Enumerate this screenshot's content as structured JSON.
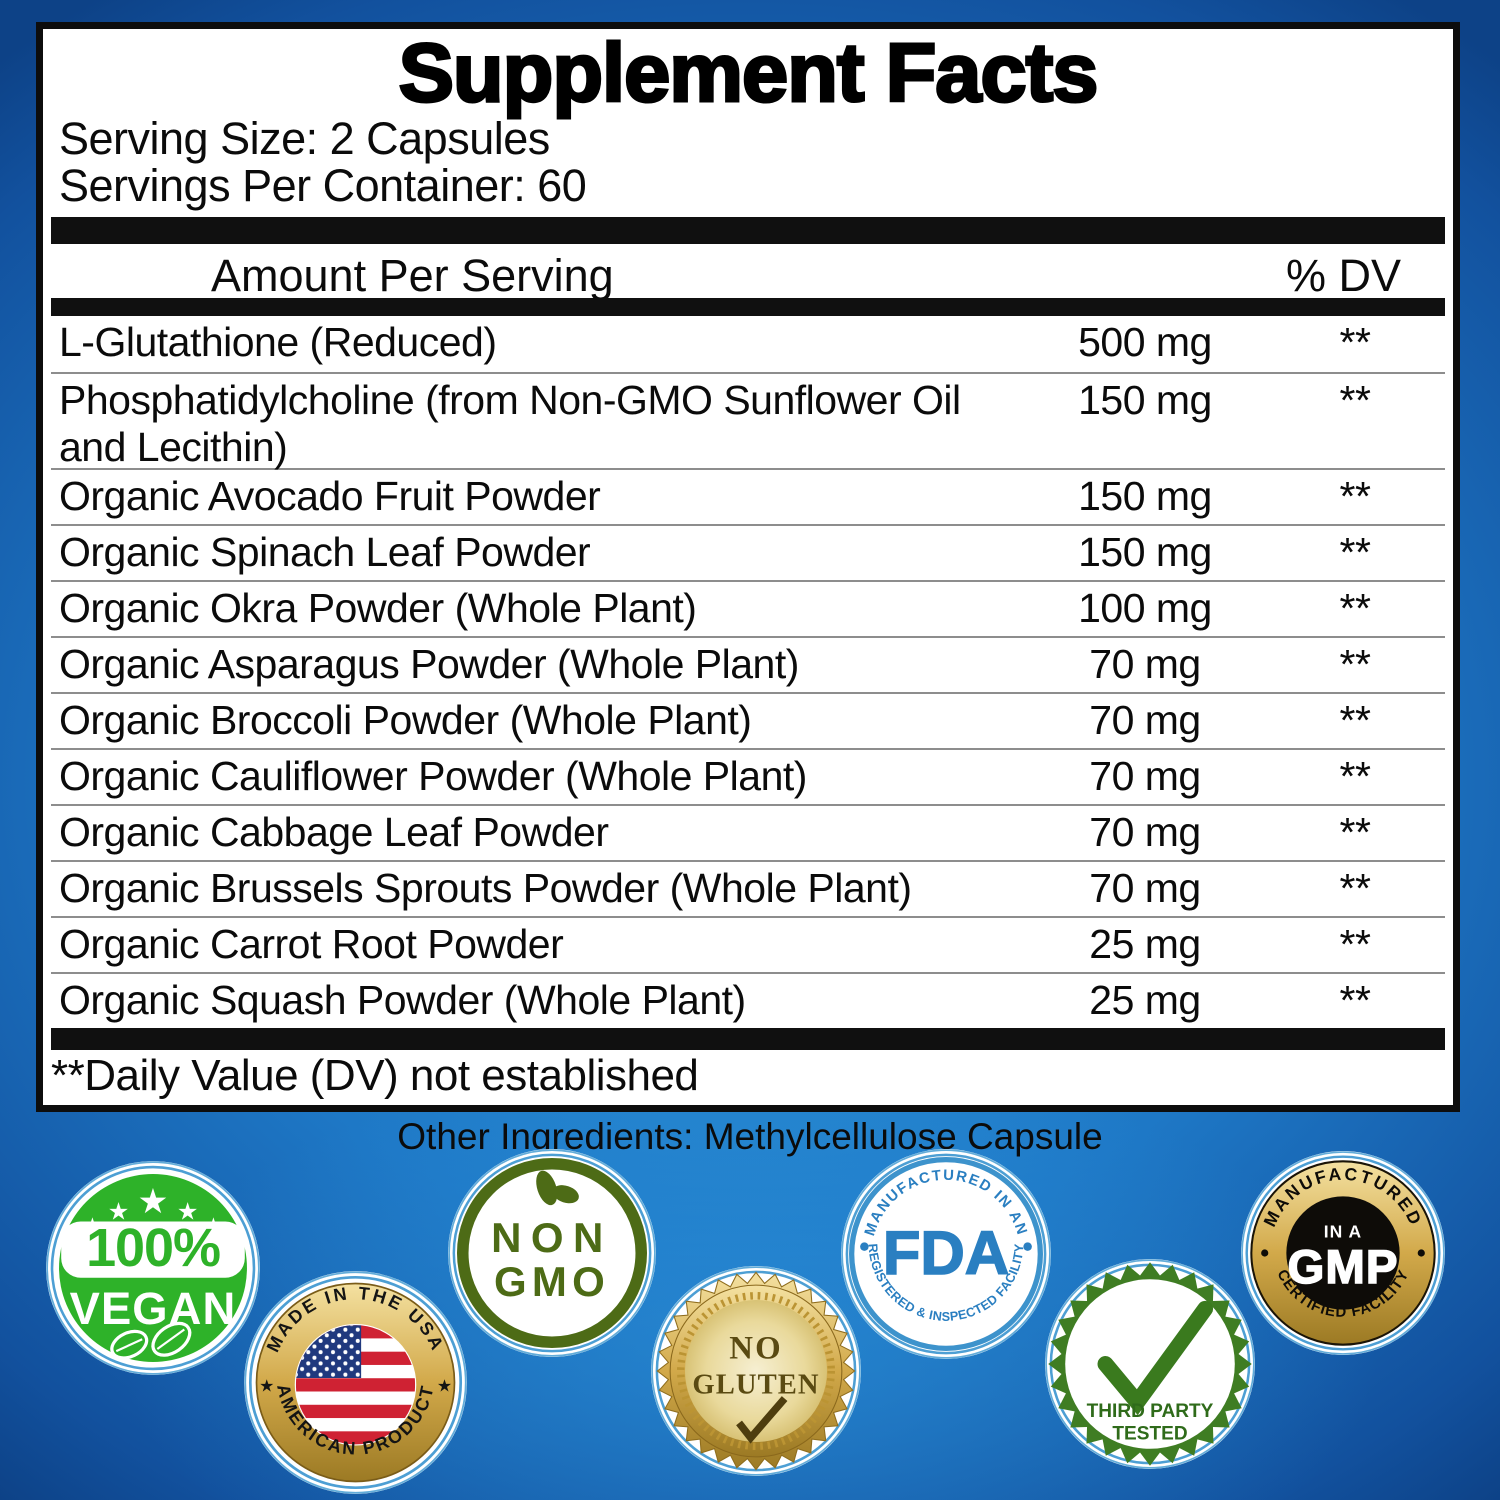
{
  "label": {
    "title": "Supplement Facts",
    "serving_size": "Serving Size: 2 Capsules",
    "servings_per_container": "Servings Per Container: 60",
    "columns": {
      "amount": "Amount Per Serving",
      "dv": "% DV"
    },
    "rows": [
      {
        "name": "L-Glutathione (Reduced)",
        "amount": "500 mg",
        "dv": "**"
      },
      {
        "name": "Phosphatidylcholine (from Non-GMO Sunflower Oil and Lecithin)",
        "amount": "150 mg",
        "dv": "**"
      },
      {
        "name": "Organic Avocado Fruit Powder",
        "amount": "150 mg",
        "dv": "**"
      },
      {
        "name": "Organic Spinach Leaf Powder",
        "amount": "150 mg",
        "dv": "**"
      },
      {
        "name": "Organic Okra Powder (Whole Plant)",
        "amount": "100 mg",
        "dv": "**"
      },
      {
        "name": "Organic Asparagus Powder (Whole Plant)",
        "amount": "70 mg",
        "dv": "**"
      },
      {
        "name": "Organic Broccoli Powder (Whole Plant)",
        "amount": "70 mg",
        "dv": "**"
      },
      {
        "name": "Organic Cauliflower Powder (Whole Plant)",
        "amount": "70 mg",
        "dv": "**"
      },
      {
        "name": "Organic Cabbage Leaf Powder",
        "amount": "70 mg",
        "dv": "**"
      },
      {
        "name": "Organic Brussels Sprouts Powder (Whole Plant)",
        "amount": "70 mg",
        "dv": "**"
      },
      {
        "name": "Organic Carrot Root Powder",
        "amount": "25 mg",
        "dv": "**"
      },
      {
        "name": "Organic Squash Powder (Whole Plant)",
        "amount": "25 mg",
        "dv": "**"
      }
    ],
    "footnote": "**Daily Value (DV) not established",
    "other_ingredients": "Other Ingredients: Methylcellulose Capsule"
  },
  "badges": {
    "vegan": {
      "value": "100%",
      "label": "VEGAN"
    },
    "usa": {
      "arc_top": "MADE IN THE USA",
      "arc_bottom": "AMERICAN PRODUCT"
    },
    "non_gmo": {
      "line1": "NON",
      "line2": "GMO"
    },
    "no_gluten": {
      "line1": "NO",
      "line2": "GLUTEN"
    },
    "fda": {
      "arc_top": "MANUFACTURED IN AN",
      "center": "FDA",
      "arc_bottom": "REGISTERED & INSPECTED FACILITY"
    },
    "third_party": {
      "line1": "THIRD PARTY",
      "line2": "TESTED"
    },
    "gmp": {
      "arc_top": "MANUFACTURED",
      "sub": "IN A",
      "center": "GMP",
      "arc_bottom": "CERTIFIED FACILITY"
    }
  },
  "colors": {
    "vegan_green": "#2eb229",
    "olive_green": "#4d6b16",
    "third_party_green": "#3a7a1e",
    "fda_blue": "#2a7fc1",
    "ring_blue": "#4d9fd4",
    "gold": "#d2a94a",
    "gluten_text_brown": "#5a4a12",
    "bg_dark_blue": "#0d4287",
    "bg_light_blue": "#2f9ade",
    "panel_border": "#0d0d0d"
  }
}
